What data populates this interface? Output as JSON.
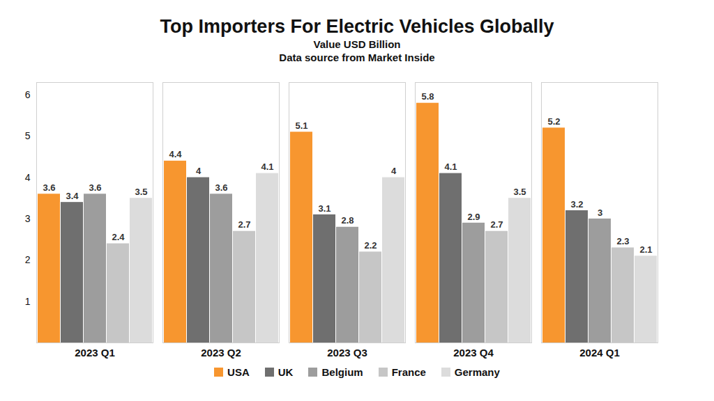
{
  "chart_data": {
    "type": "bar",
    "title": "Top Importers For Electric Vehicles Globally",
    "subtitle": "Value USD Billion",
    "source": "Data source from Market Inside",
    "categories": [
      "2023 Q1",
      "2023 Q2",
      "2023 Q3",
      "2023 Q4",
      "2024 Q1"
    ],
    "series": [
      {
        "name": "USA",
        "color": "#f7962f",
        "values": [
          3.6,
          4.4,
          5.1,
          5.8,
          5.2
        ]
      },
      {
        "name": "UK",
        "color": "#6f6f6f",
        "values": [
          3.4,
          4,
          3.1,
          4.1,
          3.2
        ]
      },
      {
        "name": "Belgium",
        "color": "#9d9d9d",
        "values": [
          3.6,
          3.6,
          2.8,
          2.9,
          3
        ]
      },
      {
        "name": "France",
        "color": "#c6c6c6",
        "values": [
          2.4,
          2.7,
          2.2,
          2.7,
          2.3
        ]
      },
      {
        "name": "Germany",
        "color": "#dcdcdc",
        "values": [
          3.5,
          4.1,
          4,
          3.5,
          2.1
        ]
      }
    ],
    "ylim": [
      0,
      6.3
    ],
    "yticks": [
      1,
      2,
      3,
      4,
      5,
      6
    ],
    "grid": false,
    "data_labels": true,
    "legend": "bottom"
  }
}
